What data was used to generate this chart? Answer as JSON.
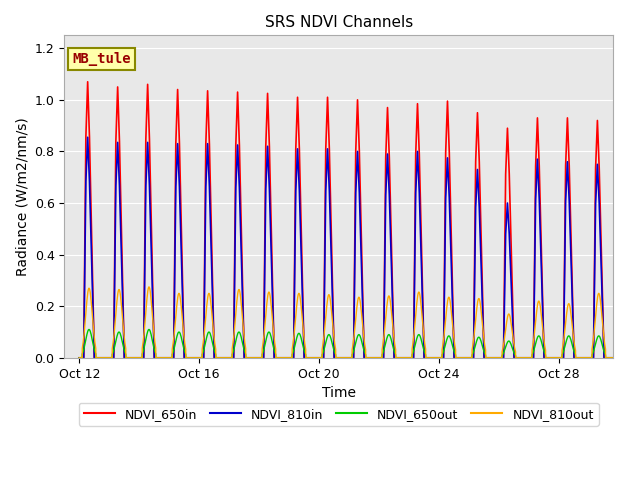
{
  "title": "SRS NDVI Channels",
  "xlabel": "Time",
  "ylabel": "Radiance (W/m2/nm/s)",
  "ylim": [
    0.0,
    1.25
  ],
  "annotation_text": "MB_tule",
  "legend_entries": [
    "NDVI_650in",
    "NDVI_810in",
    "NDVI_650out",
    "NDVI_810out"
  ],
  "line_colors": [
    "#ff0000",
    "#0000cc",
    "#00cc00",
    "#ffaa00"
  ],
  "xtick_labels": [
    "Oct 12",
    "Oct 16",
    "Oct 20",
    "Oct 24",
    "Oct 28"
  ],
  "xtick_day_offsets": [
    0,
    4,
    8,
    12,
    16
  ],
  "background_color": "#e8e8e8",
  "n_cycles": 18,
  "day_start": 0.3,
  "peak_heights_650in": [
    1.07,
    1.05,
    1.06,
    1.04,
    1.035,
    1.03,
    1.025,
    1.01,
    1.01,
    1.0,
    0.97,
    0.985,
    0.995,
    0.95,
    0.89,
    0.93,
    0.93,
    0.92
  ],
  "peak_heights_810in": [
    0.855,
    0.835,
    0.835,
    0.83,
    0.83,
    0.825,
    0.82,
    0.81,
    0.81,
    0.8,
    0.79,
    0.8,
    0.775,
    0.73,
    0.6,
    0.77,
    0.76,
    0.75
  ],
  "peak_heights_650out": [
    0.11,
    0.1,
    0.11,
    0.1,
    0.1,
    0.1,
    0.1,
    0.095,
    0.09,
    0.09,
    0.09,
    0.09,
    0.085,
    0.08,
    0.065,
    0.085,
    0.085,
    0.085
  ],
  "peak_heights_810out": [
    0.27,
    0.265,
    0.275,
    0.25,
    0.25,
    0.265,
    0.255,
    0.25,
    0.245,
    0.235,
    0.24,
    0.255,
    0.235,
    0.23,
    0.17,
    0.22,
    0.21,
    0.25
  ],
  "cycle_period": 1.0
}
